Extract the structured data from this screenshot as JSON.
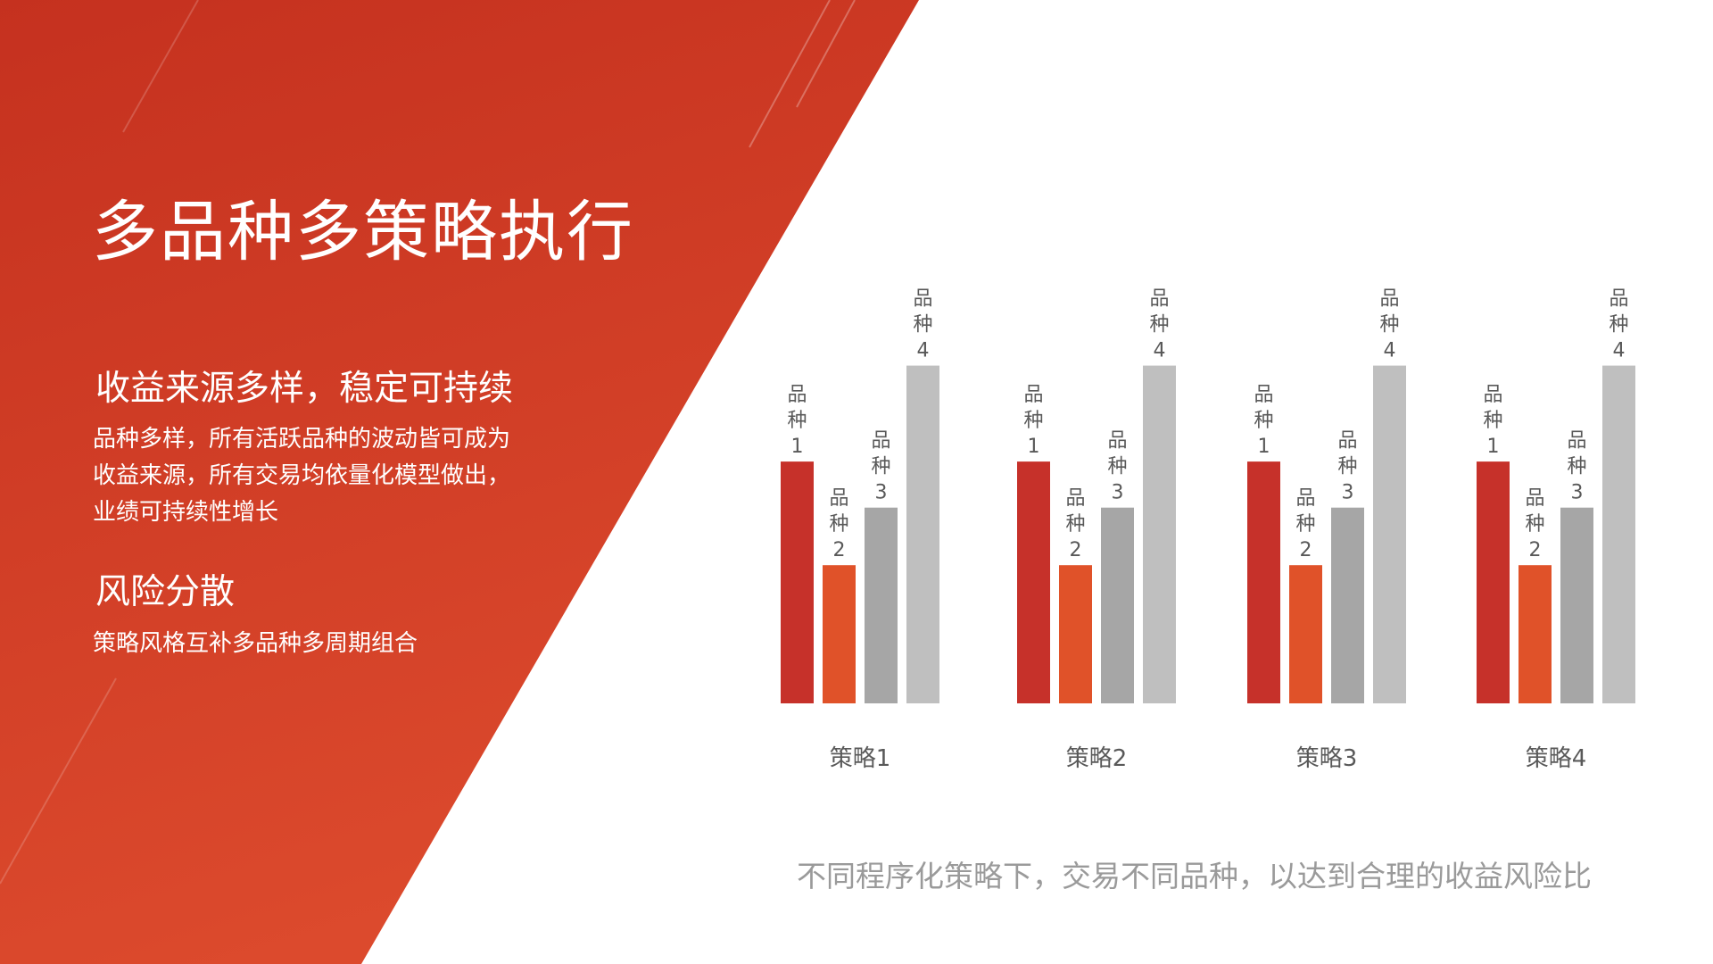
{
  "slide": {
    "title": "多品种多策略执行",
    "sections": [
      {
        "heading": "收益来源多样，稳定可持续",
        "body_lines": [
          "品种多样，所有活跃品种的波动皆可成为",
          "收益来源，所有交易均依量化模型做出，",
          "业绩可持续性增长"
        ]
      },
      {
        "heading": "风险分散",
        "body_lines": [
          "策略风格互补多品种多周期组合"
        ]
      }
    ],
    "caption": "不同程序化策略下，交易不同品种，以达到合理的收益风险比"
  },
  "colors": {
    "panel_top": "#c5311f",
    "panel_bottom": "#dc4a2d",
    "bar_1": "#c6312a",
    "bar_2": "#e05229",
    "bar_3": "#a6a6a6",
    "bar_4": "#bfbfbf",
    "chart_text": "#595959"
  },
  "chart_data": {
    "type": "bar",
    "categories": [
      "策略1",
      "策略2",
      "策略3",
      "策略4"
    ],
    "series": [
      {
        "name": "品种1",
        "values": [
          63,
          63,
          63,
          63
        ]
      },
      {
        "name": "品种2",
        "values": [
          36,
          36,
          36,
          36
        ]
      },
      {
        "name": "品种3",
        "values": [
          51,
          51,
          51,
          51
        ]
      },
      {
        "name": "品种4",
        "values": [
          88,
          88,
          88,
          88
        ]
      }
    ],
    "ylim": [
      0,
      100
    ],
    "grid": false,
    "legend": "none",
    "series_labels_vertical": true
  }
}
